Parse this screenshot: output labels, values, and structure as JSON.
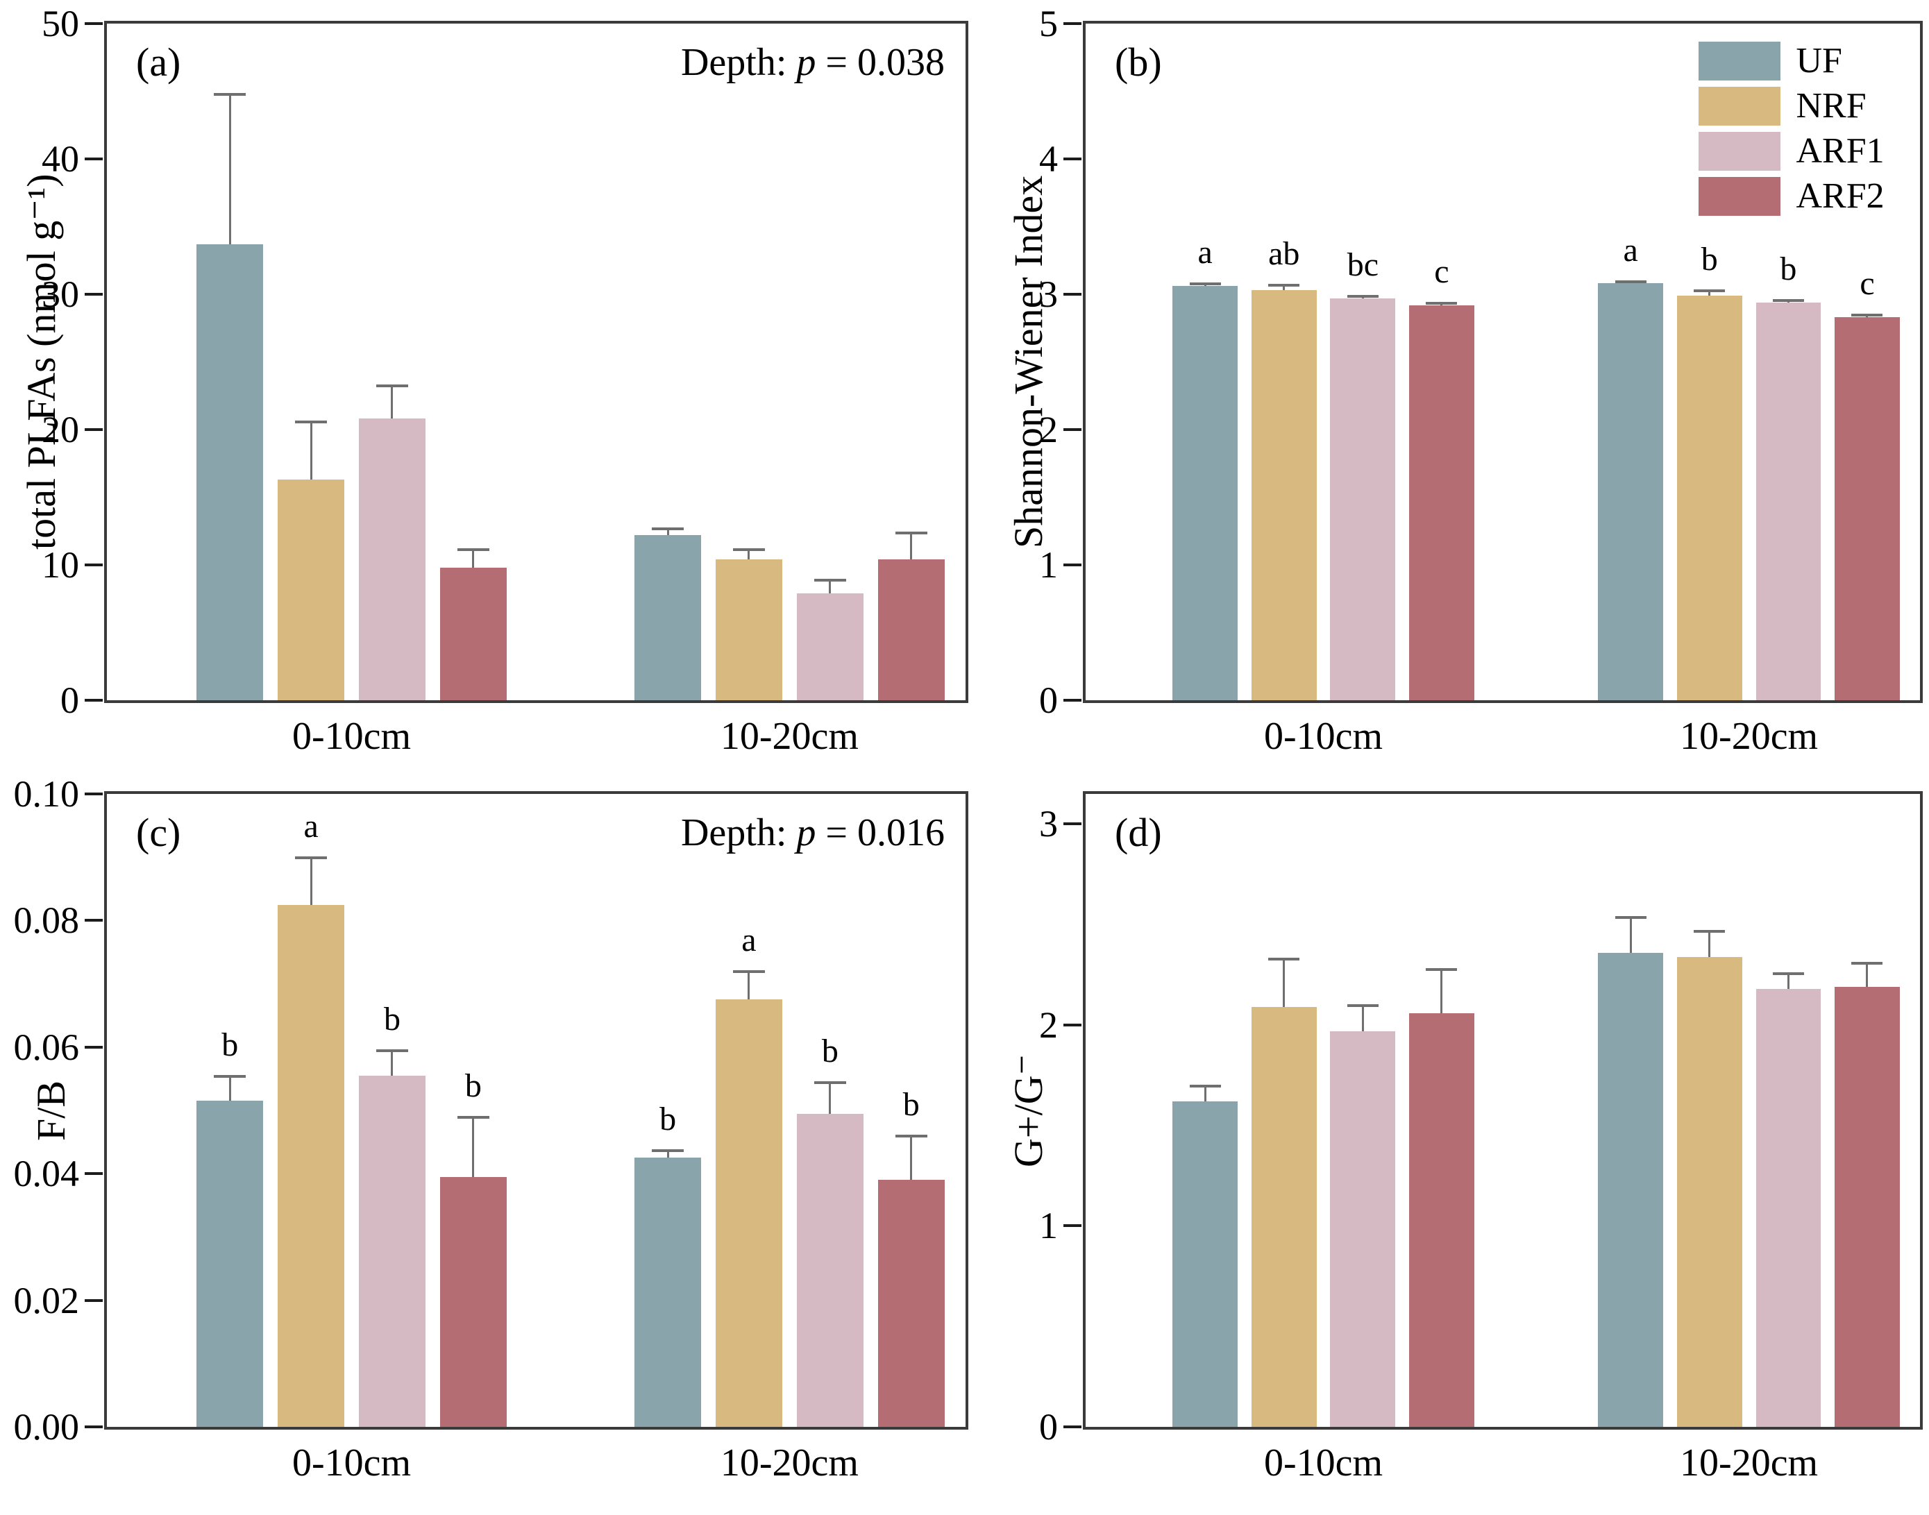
{
  "style": {
    "error_color": "#6f6f6f",
    "frame_color": "#3b3b3b",
    "text_color": "#000000",
    "background": "#ffffff"
  },
  "legend": {
    "position": "top-right-of-panel-b",
    "items": [
      {
        "label": "UF",
        "color": "#89a4aa"
      },
      {
        "label": "NRF",
        "color": "#d8b97f"
      },
      {
        "label": "ARF1",
        "color": "#d5b9c3"
      },
      {
        "label": "ARF2",
        "color": "#b46d73"
      }
    ]
  },
  "chart_data": [
    {
      "id": "a",
      "type": "bar",
      "panel_label": "(a)",
      "ylabel": "total PLFAs (nmol g⁻¹)",
      "annotation": {
        "prefix": "Depth: ",
        "italic": "p",
        "suffix": " = 0.038"
      },
      "ylim": [
        0,
        50
      ],
      "ymax": 50,
      "grid": false,
      "yticks": [
        {
          "value": 0,
          "label": "0"
        },
        {
          "value": 10,
          "label": "10"
        },
        {
          "value": 20,
          "label": "20"
        },
        {
          "value": 30,
          "label": "30"
        },
        {
          "value": 40,
          "label": "40"
        },
        {
          "value": 50,
          "label": "50"
        }
      ],
      "categories": [
        "0-10cm",
        "10-20cm"
      ],
      "series": [
        {
          "name": "UF",
          "color": "#89a4aa",
          "values": [
            33.7,
            12.2
          ],
          "errors": [
            11.1,
            0.5
          ],
          "letters": [
            "",
            ""
          ]
        },
        {
          "name": "NRF",
          "color": "#d8b97f",
          "values": [
            16.3,
            10.4
          ],
          "errors": [
            4.3,
            0.8
          ],
          "letters": [
            "",
            ""
          ]
        },
        {
          "name": "ARF1",
          "color": "#d5b9c3",
          "values": [
            20.8,
            7.9
          ],
          "errors": [
            2.5,
            1.0
          ],
          "letters": [
            "",
            ""
          ]
        },
        {
          "name": "ARF2",
          "color": "#b46d73",
          "values": [
            9.8,
            10.4
          ],
          "errors": [
            1.4,
            2.0
          ],
          "letters": [
            "",
            ""
          ]
        }
      ]
    },
    {
      "id": "b",
      "type": "bar",
      "panel_label": "(b)",
      "ylabel": "Shannon-Wiener Index",
      "ylim": [
        0,
        5
      ],
      "ymax": 5,
      "grid": false,
      "yticks": [
        {
          "value": 0,
          "label": "0"
        },
        {
          "value": 1,
          "label": "1"
        },
        {
          "value": 2,
          "label": "2"
        },
        {
          "value": 3,
          "label": "3"
        },
        {
          "value": 4,
          "label": "4"
        },
        {
          "value": 5,
          "label": "5"
        }
      ],
      "categories": [
        "0-10cm",
        "10-20cm"
      ],
      "series": [
        {
          "name": "UF",
          "color": "#89a4aa",
          "values": [
            3.06,
            3.08
          ],
          "errors": [
            0.02,
            0.02
          ],
          "letters": [
            "a",
            "a"
          ]
        },
        {
          "name": "NRF",
          "color": "#d8b97f",
          "values": [
            3.03,
            2.99
          ],
          "errors": [
            0.04,
            0.04
          ],
          "letters": [
            "ab",
            "b"
          ]
        },
        {
          "name": "ARF1",
          "color": "#d5b9c3",
          "values": [
            2.97,
            2.94
          ],
          "errors": [
            0.02,
            0.02
          ],
          "letters": [
            "bc",
            "b"
          ]
        },
        {
          "name": "ARF2",
          "color": "#b46d73",
          "values": [
            2.92,
            2.83
          ],
          "errors": [
            0.02,
            0.02
          ],
          "letters": [
            "c",
            "c"
          ]
        }
      ]
    },
    {
      "id": "c",
      "type": "bar",
      "panel_label": "(c)",
      "ylabel": "F/B",
      "annotation": {
        "prefix": "Depth: ",
        "italic": "p",
        "suffix": " = 0.016"
      },
      "ylim": [
        0,
        0.1
      ],
      "ymax": 0.1,
      "grid": false,
      "yticks": [
        {
          "value": 0.0,
          "label": "0.00"
        },
        {
          "value": 0.02,
          "label": "0.02"
        },
        {
          "value": 0.04,
          "label": "0.04"
        },
        {
          "value": 0.06,
          "label": "0.06"
        },
        {
          "value": 0.08,
          "label": "0.08"
        },
        {
          "value": 0.1,
          "label": "0.10"
        }
      ],
      "categories": [
        "0-10cm",
        "10-20cm"
      ],
      "series": [
        {
          "name": "UF",
          "color": "#89a4aa",
          "values": [
            0.0515,
            0.0425
          ],
          "errors": [
            0.004,
            0.0012
          ],
          "letters": [
            "b",
            "b"
          ]
        },
        {
          "name": "NRF",
          "color": "#d8b97f",
          "values": [
            0.0825,
            0.0675
          ],
          "errors": [
            0.0075,
            0.0045
          ],
          "letters": [
            "a",
            "a"
          ]
        },
        {
          "name": "ARF1",
          "color": "#d5b9c3",
          "values": [
            0.0555,
            0.0495
          ],
          "errors": [
            0.004,
            0.005
          ],
          "letters": [
            "b",
            "b"
          ]
        },
        {
          "name": "ARF2",
          "color": "#b46d73",
          "values": [
            0.0395,
            0.039
          ],
          "errors": [
            0.0095,
            0.007
          ],
          "letters": [
            "b",
            "b"
          ]
        }
      ]
    },
    {
      "id": "d",
      "type": "bar",
      "panel_label": "(d)",
      "ylabel": "G+/G⁻",
      "ylim": [
        0,
        3.15
      ],
      "ymax": 3.15,
      "grid": false,
      "yticks": [
        {
          "value": 0,
          "label": "0"
        },
        {
          "value": 1,
          "label": "1"
        },
        {
          "value": 2,
          "label": "2"
        },
        {
          "value": 3,
          "label": "3"
        }
      ],
      "categories": [
        "0-10cm",
        "10-20cm"
      ],
      "series": [
        {
          "name": "UF",
          "color": "#89a4aa",
          "values": [
            1.62,
            2.36
          ],
          "errors": [
            0.08,
            0.18
          ],
          "letters": [
            "",
            ""
          ]
        },
        {
          "name": "NRF",
          "color": "#d8b97f",
          "values": [
            2.09,
            2.34
          ],
          "errors": [
            0.24,
            0.13
          ],
          "letters": [
            "",
            ""
          ]
        },
        {
          "name": "ARF1",
          "color": "#d5b9c3",
          "values": [
            1.97,
            2.18
          ],
          "errors": [
            0.13,
            0.08
          ],
          "letters": [
            "",
            ""
          ]
        },
        {
          "name": "ARF2",
          "color": "#b46d73",
          "values": [
            2.06,
            2.19
          ],
          "errors": [
            0.22,
            0.12
          ],
          "letters": [
            "",
            ""
          ]
        }
      ]
    }
  ]
}
